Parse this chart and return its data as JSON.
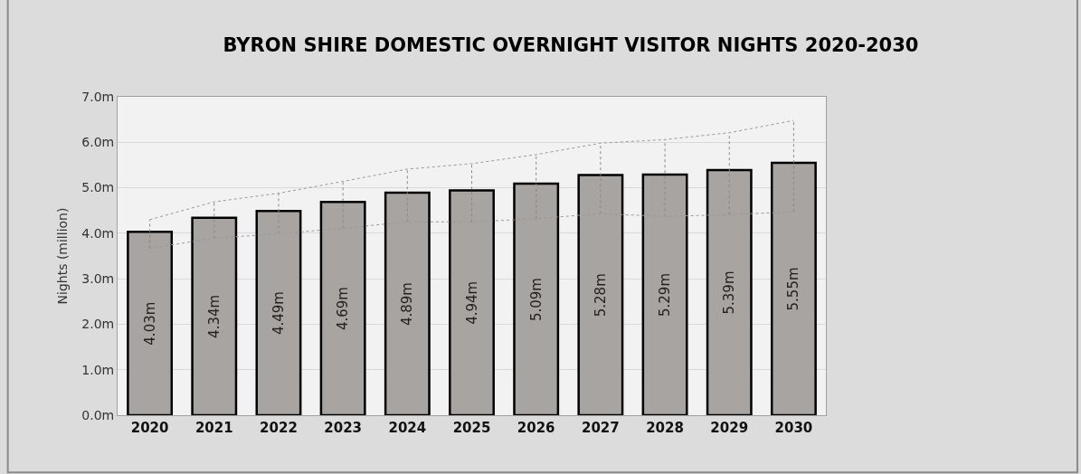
{
  "chart_data": {
    "type": "bar",
    "title": "BYRON SHIRE DOMESTIC OVERNIGHT VISITOR NIGHTS 2020-2030",
    "ylabel": "Nights (million)",
    "categories": [
      "2020",
      "2021",
      "2022",
      "2023",
      "2024",
      "2025",
      "2026",
      "2027",
      "2028",
      "2029",
      "2030"
    ],
    "series": [
      {
        "color": "#a8a4a2",
        "values": [
          4.03,
          4.34,
          4.49,
          4.69,
          4.89,
          4.94,
          5.09,
          5.28,
          5.29,
          5.39,
          5.55
        ],
        "value_labels": [
          "4.03m",
          "4.34m",
          "4.49m",
          "4.69m",
          "4.89m",
          "4.94m",
          "5.09m",
          "5.28m",
          "5.29m",
          "5.39m",
          "5.55m"
        ],
        "errors": [
          [
            3.67,
            4.3
          ],
          [
            3.89,
            4.69
          ],
          [
            3.99,
            4.88
          ],
          [
            4.11,
            5.14
          ],
          [
            4.25,
            5.41
          ],
          [
            4.25,
            5.53
          ],
          [
            4.32,
            5.73
          ],
          [
            4.43,
            5.98
          ],
          [
            4.37,
            6.06
          ],
          [
            4.41,
            6.21
          ],
          [
            4.47,
            6.48
          ]
        ]
      },
      {
        "type": "line",
        "color": "#999999",
        "line_style": "dotted",
        "values": [
          4.3,
          4.69,
          4.88,
          5.14,
          5.41,
          5.53,
          5.73,
          5.98,
          6.06,
          6.21,
          6.48
        ]
      },
      {
        "type": "line",
        "color": "#999999",
        "line_style": "dotted",
        "values": [
          3.67,
          3.89,
          3.99,
          4.11,
          4.25,
          4.25,
          4.32,
          4.43,
          4.37,
          4.41,
          4.47
        ]
      }
    ],
    "ylim": [
      0,
      7
    ],
    "yticks": [
      {
        "value": 0,
        "label": "0.0m"
      },
      {
        "value": 1,
        "label": "1.0m"
      },
      {
        "value": 2,
        "label": "2.0m"
      },
      {
        "value": 3,
        "label": "3.0m"
      },
      {
        "value": 4,
        "label": "4.0m"
      },
      {
        "value": 5,
        "label": "5.0m"
      },
      {
        "value": 6,
        "label": "6.0m"
      },
      {
        "value": 7,
        "label": "7.0m"
      }
    ],
    "grid": "y"
  }
}
